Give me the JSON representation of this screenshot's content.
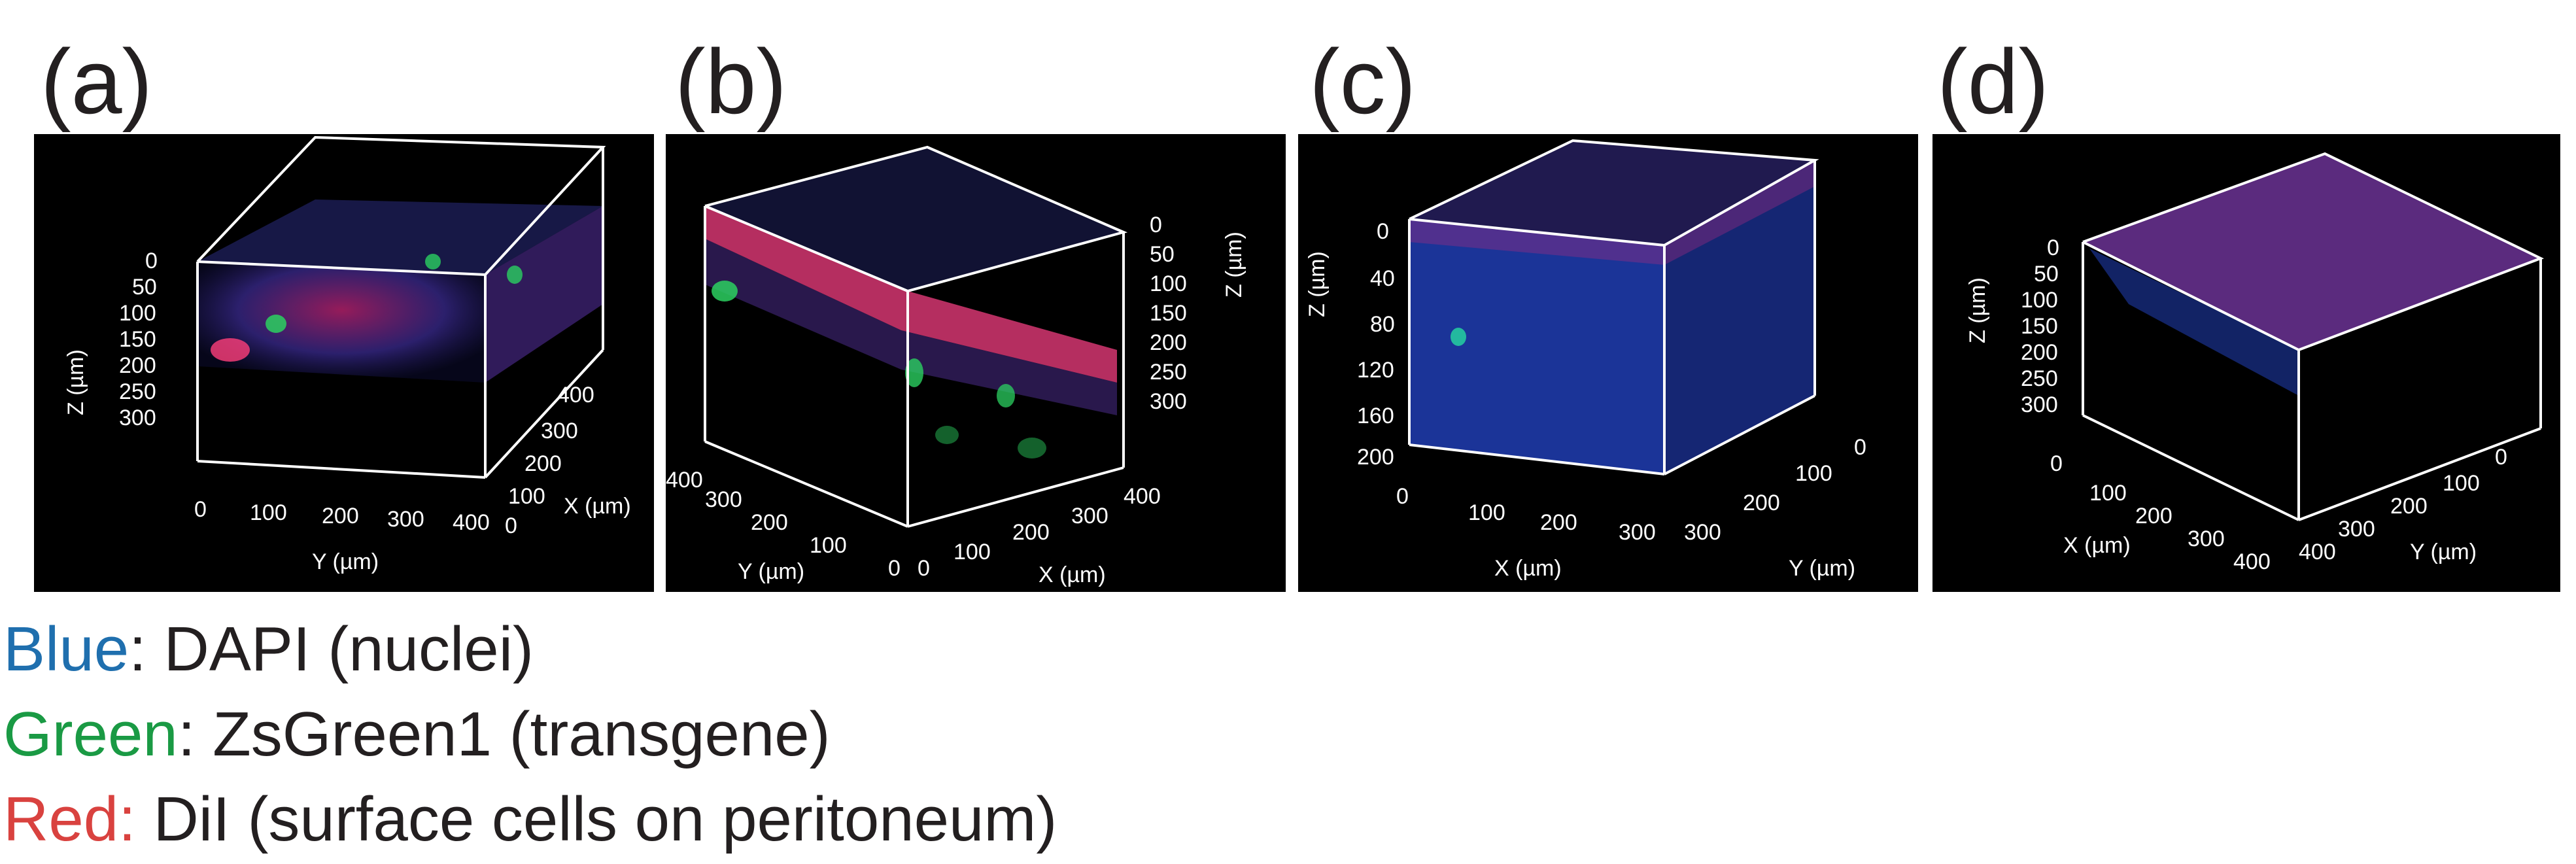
{
  "panels": [
    {
      "label": "(a)",
      "z_axis_title": "Z (µm)",
      "z_ticks": [
        "0",
        "50",
        "100",
        "150",
        "200",
        "250",
        "300"
      ],
      "y_axis_title": "Y (µm)",
      "y_ticks": [
        "0",
        "100",
        "200",
        "300",
        "400"
      ],
      "x_axis_title": "X (µm)",
      "x_ticks": [
        "400",
        "300",
        "200",
        "100",
        "0"
      ]
    },
    {
      "label": "(b)",
      "z_axis_title": "Z (µm)",
      "z_ticks": [
        "0",
        "50",
        "100",
        "150",
        "200",
        "250",
        "300"
      ],
      "y_axis_title": "Y (µm)",
      "y_ticks": [
        "400",
        "300",
        "200",
        "100",
        "0"
      ],
      "x_axis_title": "X (µm)",
      "x_ticks": [
        "0",
        "100",
        "200",
        "300",
        "400"
      ]
    },
    {
      "label": "(c)",
      "z_axis_title": "Z (µm)",
      "z_ticks": [
        "0",
        "40",
        "80",
        "120",
        "160",
        "200"
      ],
      "x_axis_title": "X (µm)",
      "x_ticks": [
        "0",
        "100",
        "200",
        "300"
      ],
      "y_axis_title": "Y (µm)",
      "y_ticks": [
        "300",
        "200",
        "100",
        "0"
      ]
    },
    {
      "label": "(d)",
      "z_axis_title": "Z (µm)",
      "z_ticks": [
        "0",
        "50",
        "100",
        "150",
        "200",
        "250",
        "300"
      ],
      "x_axis_title": "X (µm)",
      "x_ticks": [
        "0",
        "100",
        "200",
        "300",
        "400"
      ],
      "y_axis_title": "Y (µm)",
      "y_ticks": [
        "400",
        "300",
        "200",
        "100",
        "0"
      ]
    }
  ],
  "legend": [
    {
      "key": "Blue",
      "sep": ":",
      "text": " DAPI (nuclei)",
      "color": "#1f6fae"
    },
    {
      "key": "Green",
      "sep": ":",
      "text": " ZsGreen1 (transgene)",
      "color": "#1a9a44"
    },
    {
      "key": "Red",
      "sep": ":",
      "text": " DiI (surface cells on peritoneum)",
      "color": "#d9423f"
    }
  ]
}
